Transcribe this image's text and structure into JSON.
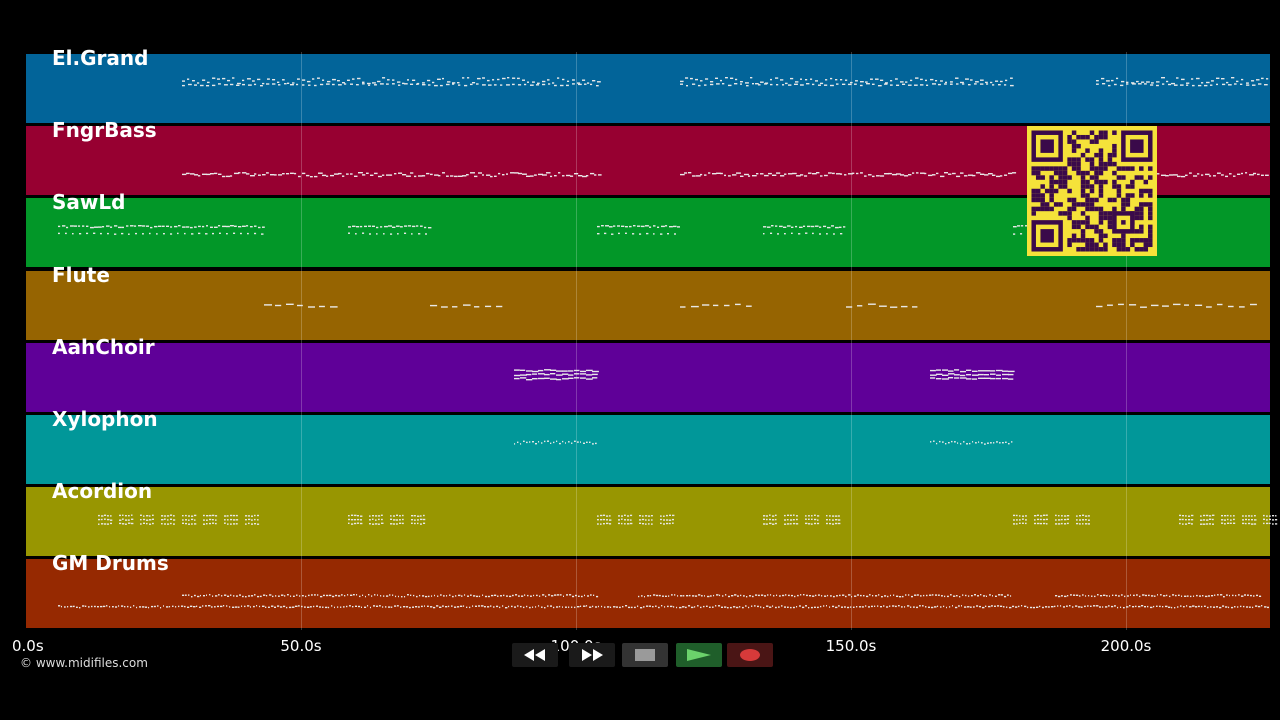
{
  "tracks": [
    {
      "name": "El.Grand",
      "color": "#026499"
    },
    {
      "name": "FngrBass",
      "color": "#970031"
    },
    {
      "name": "SawLd",
      "color": "#029728"
    },
    {
      "name": "Flute",
      "color": "#966401"
    },
    {
      "name": "AahChoir",
      "color": "#5f0098"
    },
    {
      "name": "Xylophon",
      "color": "#019799"
    },
    {
      "name": "Acordion",
      "color": "#989601"
    },
    {
      "name": "GM Drums",
      "color": "#962901"
    }
  ],
  "timeline": {
    "ticks": [
      "0.0s",
      "50.0s",
      "100.0s",
      "150.0s",
      "200.0s"
    ]
  },
  "watermark": "© www.midifiles.com",
  "transport": {
    "rewind_icon": "rewind-icon",
    "fast_forward_icon": "fast-forward-icon",
    "stop_icon": "stop-icon",
    "play_icon": "play-icon",
    "record_icon": "record-icon"
  },
  "qr_colors": {
    "fg": "#3a0a4a",
    "bg": "#f5e23a"
  }
}
